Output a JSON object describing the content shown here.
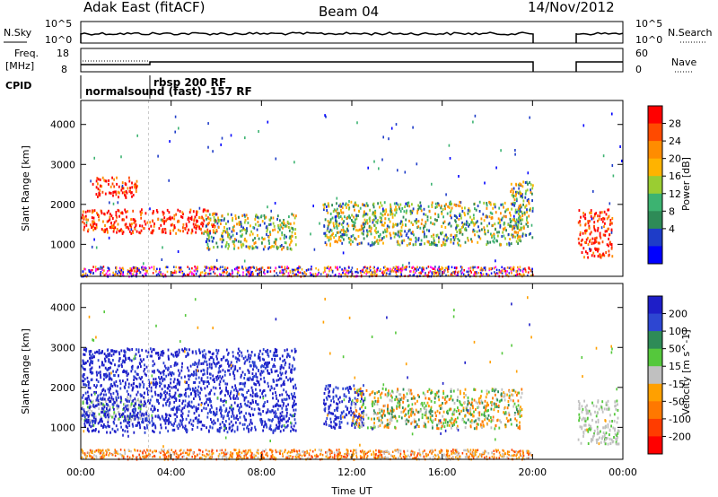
{
  "header": {
    "site": "Adak East (fitACF)",
    "beam": "Beam 04",
    "date": "14/Nov/2012"
  },
  "noise_panel": {
    "left_label": "N.Sky",
    "right_label": "N.Search",
    "left_ticks": [
      "10^5",
      "10^0"
    ],
    "right_ticks": [
      "10^5",
      "10^0"
    ]
  },
  "freq_panel": {
    "left_label_1": "Freq.",
    "left_label_2": "[MHz]",
    "left_ticks": [
      "18",
      "8"
    ],
    "right_label": "Nave",
    "right_ticks": [
      "60",
      "0"
    ]
  },
  "cpid_panel": {
    "label": "CPID",
    "modes": [
      "normalsound (fast) -157 RF",
      "rbsp 200 RF"
    ]
  },
  "power_colorbar": {
    "label": "Power [dB]",
    "ticks": [
      "28",
      "24",
      "20",
      "16",
      "12",
      "8",
      "4"
    ],
    "colors": [
      "#ff0000",
      "#ff4a00",
      "#ff8c00",
      "#ffb300",
      "#9acd32",
      "#3cb371",
      "#2e8b57",
      "#1e3cc8",
      "#0000ff"
    ]
  },
  "velocity_colorbar": {
    "label": "Velocity [m s^-1]",
    "ticks": [
      "200",
      "100",
      "50",
      "15",
      "-15",
      "-50",
      "-100",
      "-200"
    ],
    "colors": [
      "#1e1ec8",
      "#2d46d2",
      "#2e8b57",
      "#55c83c",
      "#c0c0c0",
      "#ffa000",
      "#ff7800",
      "#ff3c00",
      "#ff0000"
    ]
  },
  "chart_data": {
    "type": "heatmap",
    "xlabel": "Time UT",
    "ylabel": "Slant Range [km]",
    "x_ticks": [
      "00:00",
      "04:00",
      "08:00",
      "12:00",
      "16:00",
      "20:00",
      "00:00"
    ],
    "xlim": [
      0,
      24
    ],
    "ylim": [
      200,
      4600
    ],
    "y_ticks": [
      1000,
      2000,
      3000,
      4000
    ],
    "data_gaps_hours": [
      [
        20.0,
        22.0
      ]
    ],
    "cpid_switch_hour": 3.0,
    "power_regions": [
      {
        "t": [
          0.0,
          3.0
        ],
        "r": [
          1300,
          1900
        ],
        "level": "high"
      },
      {
        "t": [
          0.5,
          2.5
        ],
        "r": [
          2200,
          2700
        ],
        "level": "high"
      },
      {
        "t": [
          3.0,
          6.0
        ],
        "r": [
          1300,
          1900
        ],
        "level": "high"
      },
      {
        "t": [
          5.5,
          9.5
        ],
        "r": [
          900,
          1800
        ],
        "level": "medium"
      },
      {
        "t": [
          10.7,
          19.5
        ],
        "r": [
          1000,
          2100
        ],
        "level": "medium"
      },
      {
        "t": [
          19.0,
          20.0
        ],
        "r": [
          1200,
          2600
        ],
        "level": "medium"
      },
      {
        "t": [
          22.0,
          23.5
        ],
        "r": [
          700,
          1900
        ],
        "level": "high"
      }
    ],
    "velocity_regions": [
      {
        "t": [
          0.0,
          3.0
        ],
        "r": [
          1200,
          1800
        ],
        "vel": "near-zero"
      },
      {
        "t": [
          0.0,
          9.5
        ],
        "r": [
          900,
          3000
        ],
        "vel": "positive"
      },
      {
        "t": [
          10.7,
          12.5
        ],
        "r": [
          1000,
          2100
        ],
        "vel": "positive"
      },
      {
        "t": [
          12.0,
          19.5
        ],
        "r": [
          1000,
          2000
        ],
        "vel": "mixed"
      },
      {
        "t": [
          22.0,
          23.8
        ],
        "r": [
          600,
          1700
        ],
        "vel": "near-zero"
      }
    ]
  }
}
